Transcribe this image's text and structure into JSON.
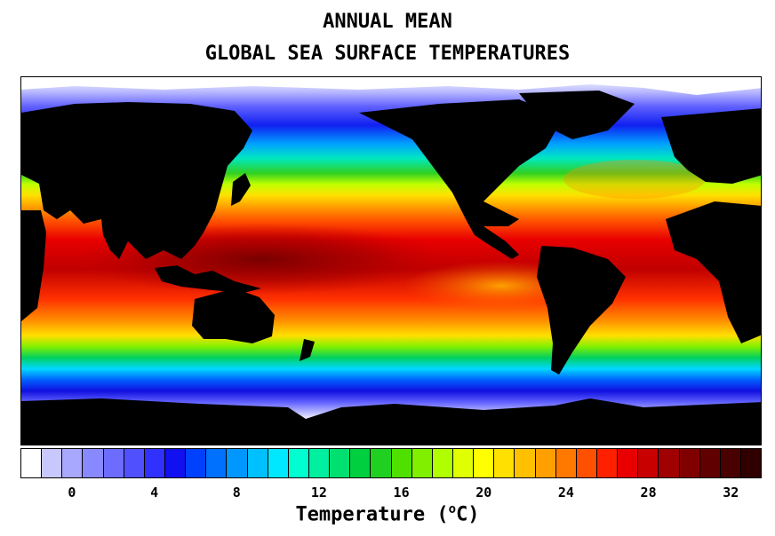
{
  "title_line1": "ANNUAL MEAN",
  "title_line2": "GLOBAL SEA SURFACE TEMPERATURES",
  "legend": {
    "label_prefix": "Temperature (",
    "label_degree": "o",
    "label_suffix": "C)",
    "ticks": [
      "0",
      "4",
      "8",
      "12",
      "16",
      "20",
      "24",
      "28",
      "32"
    ],
    "tick_values": [
      0,
      4,
      8,
      12,
      16,
      20,
      24,
      28,
      32
    ],
    "min": -2,
    "max": 34,
    "colors": [
      "#ffffff",
      "#c8c8ff",
      "#a8a8ff",
      "#8888ff",
      "#6c6cff",
      "#5050ff",
      "#3030ff",
      "#1010f0",
      "#0040ff",
      "#0070ff",
      "#0098ff",
      "#00c0ff",
      "#00e8ff",
      "#00ffd0",
      "#00f0a0",
      "#00e070",
      "#00d040",
      "#20d020",
      "#50e000",
      "#80f000",
      "#b0ff00",
      "#e0ff00",
      "#ffff00",
      "#ffe000",
      "#ffc000",
      "#ffa000",
      "#ff7800",
      "#ff5000",
      "#ff2000",
      "#e80000",
      "#c80000",
      "#a00000",
      "#800000",
      "#600000",
      "#480000",
      "#300000"
    ]
  }
}
